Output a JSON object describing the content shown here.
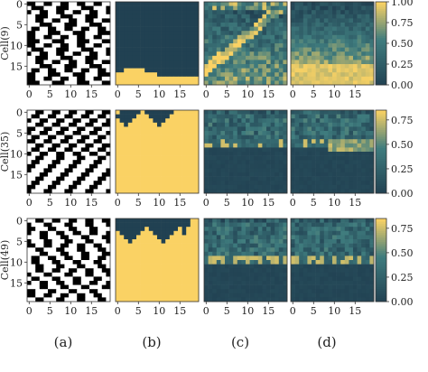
{
  "chart_data": {
    "type": "heatmap",
    "rows": [
      {
        "ylabel": "Cell(9)",
        "colorbar_ticks": [
          "0.00",
          "0.25",
          "0.50",
          "0.75",
          "1.00"
        ],
        "vmax": 1.0
      },
      {
        "ylabel": "Cell(35)",
        "colorbar_ticks": [
          "0.00",
          "0.25",
          "0.50",
          "0.75"
        ],
        "vmax": 0.85
      },
      {
        "ylabel": "Cell(49)",
        "colorbar_ticks": [
          "0.00",
          "0.25",
          "0.50",
          "0.75"
        ],
        "vmax": 0.85
      }
    ],
    "x_ticks": [
      "0",
      "5",
      "10",
      "15"
    ],
    "y_ticks": [
      "0",
      "5",
      "10",
      "15"
    ],
    "grid_size": 20,
    "panel_labels": [
      "(a)",
      "(b)",
      "(c)",
      "(d)"
    ],
    "colormap": {
      "low": "#214152",
      "mid": "#3f7c7e",
      "high": "#fad264"
    },
    "colors": {
      "black": "#000000",
      "white": "#ffffff"
    }
  }
}
